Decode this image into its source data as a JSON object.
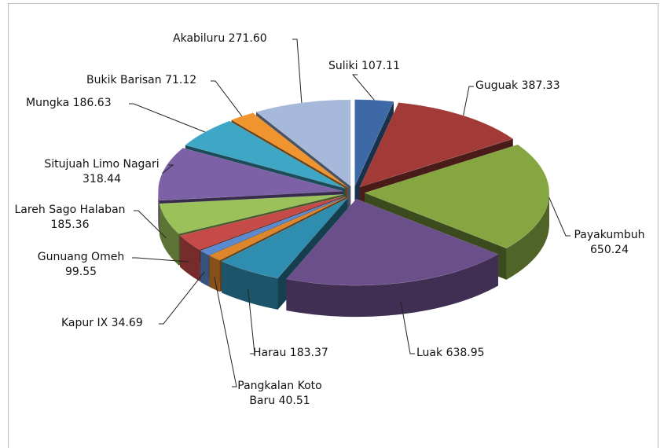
{
  "chart_data": {
    "type": "pie",
    "categories": [
      "Suliki",
      "Guguak",
      "Payakumbuh",
      "Luak",
      "Harau",
      "Pangkalan Koto Baru",
      "Kapur IX",
      "Gunuang Omeh",
      "Lareh Sago Halaban",
      "Situjuah Limo Nagari",
      "Mungka",
      "Bukik Barisan",
      "Akabiluru"
    ],
    "values": [
      107.11,
      387.33,
      650.24,
      638.95,
      183.37,
      40.51,
      34.69,
      99.55,
      185.36,
      318.44,
      186.63,
      71.12,
      271.6
    ],
    "value_labels": [
      "107.11",
      "387.33",
      "650.24",
      "638.95",
      "183.37",
      "40.51",
      "34.69",
      "99.55",
      "185.36",
      "318.44",
      "186.63",
      "71.12",
      "271.60"
    ],
    "colors": [
      "#3d6aa6",
      "#a23b38",
      "#85a641",
      "#6a4f8b",
      "#2f8daf",
      "#e0862a",
      "#5a8ad0",
      "#c54a48",
      "#9bc15a",
      "#7c61a6",
      "#3fa7c6",
      "#ef942f",
      "#a6b9db"
    ]
  }
}
